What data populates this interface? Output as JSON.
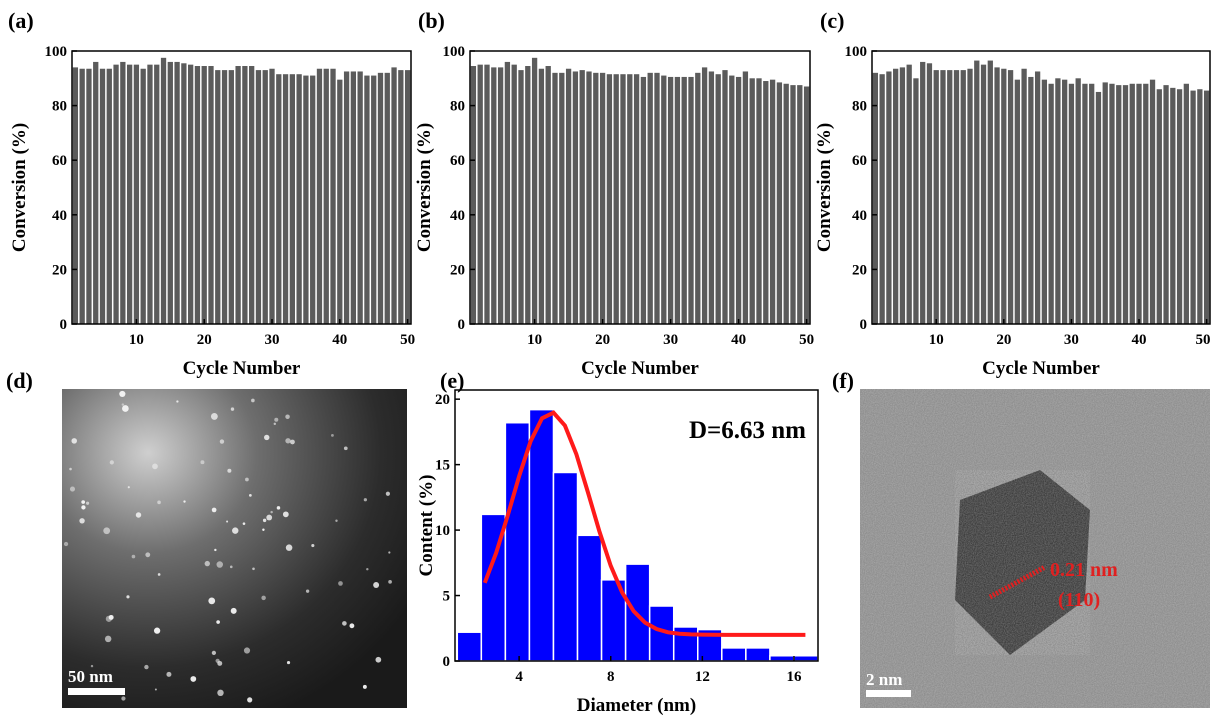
{
  "chart_data": [
    {
      "type": "bar",
      "panel_label": "(a)",
      "xlabel": "Cycle Number",
      "ylabel": "Conversion (%)",
      "color": "#5b5b5b",
      "x": [
        1,
        2,
        3,
        4,
        5,
        6,
        7,
        8,
        9,
        10,
        11,
        12,
        13,
        14,
        15,
        16,
        17,
        18,
        19,
        20,
        21,
        22,
        23,
        24,
        25,
        26,
        27,
        28,
        29,
        30,
        31,
        32,
        33,
        34,
        35,
        36,
        37,
        38,
        39,
        40,
        41,
        42,
        43,
        44,
        45,
        46,
        47,
        48,
        49,
        50
      ],
      "values": [
        94,
        93.5,
        93.5,
        96,
        93.5,
        93.5,
        95,
        96,
        95,
        95,
        93.5,
        95,
        95,
        97.5,
        96,
        96,
        95.5,
        95,
        94.5,
        94.5,
        94.5,
        93,
        93,
        93,
        94.5,
        94.5,
        94.5,
        93,
        93,
        93.5,
        91.5,
        91.5,
        91.5,
        91.5,
        91,
        91,
        93.5,
        93.5,
        93.5,
        89.5,
        92.5,
        92.5,
        92.5,
        91,
        91,
        92,
        92,
        94,
        93,
        93
      ],
      "xlim": [
        0.5,
        50.5
      ],
      "xticks": [
        10,
        20,
        30,
        40,
        50
      ],
      "ylim": [
        0,
        100
      ],
      "yticks": [
        0,
        20,
        40,
        60,
        80,
        100
      ]
    },
    {
      "type": "bar",
      "panel_label": "(b)",
      "xlabel": "Cycle Number",
      "ylabel": "Conversion (%)",
      "color": "#5b5b5b",
      "x": [
        1,
        2,
        3,
        4,
        5,
        6,
        7,
        8,
        9,
        10,
        11,
        12,
        13,
        14,
        15,
        16,
        17,
        18,
        19,
        20,
        21,
        22,
        23,
        24,
        25,
        26,
        27,
        28,
        29,
        30,
        31,
        32,
        33,
        34,
        35,
        36,
        37,
        38,
        39,
        40,
        41,
        42,
        43,
        44,
        45,
        46,
        47,
        48,
        49,
        50
      ],
      "values": [
        94.5,
        95,
        95,
        94,
        94,
        96,
        95,
        93,
        94.5,
        97.5,
        93.5,
        94.5,
        92,
        92,
        93.5,
        92.5,
        93,
        92.5,
        92,
        92,
        91.5,
        91.5,
        91.5,
        91.5,
        91.5,
        90.5,
        92,
        92,
        91,
        90.5,
        90.5,
        90.5,
        90.5,
        92,
        94,
        92.5,
        91.5,
        93,
        91,
        90.5,
        92.5,
        90,
        90,
        89,
        89.5,
        88.5,
        88,
        87.5,
        87.5,
        87
      ],
      "xlim": [
        0.5,
        50.5
      ],
      "xticks": [
        10,
        20,
        30,
        40,
        50
      ],
      "ylim": [
        0,
        100
      ],
      "yticks": [
        0,
        20,
        40,
        60,
        80,
        100
      ]
    },
    {
      "type": "bar",
      "panel_label": "(c)",
      "xlabel": "Cycle Number",
      "ylabel": "Conversion (%)",
      "color": "#5b5b5b",
      "x": [
        1,
        2,
        3,
        4,
        5,
        6,
        7,
        8,
        9,
        10,
        11,
        12,
        13,
        14,
        15,
        16,
        17,
        18,
        19,
        20,
        21,
        22,
        23,
        24,
        25,
        26,
        27,
        28,
        29,
        30,
        31,
        32,
        33,
        34,
        35,
        36,
        37,
        38,
        39,
        40,
        41,
        42,
        43,
        44,
        45,
        46,
        47,
        48,
        49,
        50
      ],
      "values": [
        92,
        91.5,
        92.5,
        93.5,
        94,
        95,
        90,
        96,
        95.5,
        93,
        93,
        93,
        93,
        93,
        93.5,
        96.5,
        95,
        96.5,
        94,
        93.5,
        93,
        89.5,
        93.5,
        90.5,
        92.5,
        89.5,
        88,
        90,
        89.5,
        88,
        90,
        88,
        88,
        85,
        88.5,
        88,
        87.5,
        87.5,
        88,
        88,
        88,
        89.5,
        86,
        87.5,
        86.5,
        86,
        88,
        85.5,
        86,
        85.5
      ],
      "xlim": [
        0.5,
        50.5
      ],
      "xticks": [
        10,
        20,
        30,
        40,
        50
      ],
      "ylim": [
        0,
        100
      ],
      "yticks": [
        0,
        20,
        40,
        60,
        80,
        100
      ]
    },
    {
      "type": "histogram",
      "panel_label": "(e)",
      "xlabel": "Diameter (nm)",
      "ylabel": "Content (%)",
      "annotation": "D=6.63 nm",
      "color": "#0000ff",
      "bins": [
        1.3,
        2.35,
        3.4,
        4.45,
        5.5,
        6.55,
        7.6,
        8.65,
        9.7,
        10.75,
        11.8,
        12.85,
        13.9,
        14.95,
        16,
        17.05
      ],
      "values": [
        2.2,
        11.2,
        18.2,
        19.2,
        14.4,
        9.6,
        6.2,
        7.4,
        4.2,
        2.6,
        2.4,
        1.0,
        1.0,
        0.4,
        0.4
      ],
      "fit": {
        "color": "#ff1a1a",
        "x": [
          2.5,
          3,
          3.5,
          4,
          4.5,
          5,
          5.5,
          6,
          6.5,
          7,
          7.5,
          8,
          8.5,
          9,
          9.5,
          10,
          10.5,
          11,
          11.5,
          12,
          13,
          14,
          15,
          16.5
        ],
        "values": [
          5.97,
          8.27,
          11.1,
          14.11,
          16.78,
          18.54,
          18.97,
          17.98,
          15.79,
          12.91,
          9.93,
          7.27,
          5.23,
          3.81,
          2.93,
          2.44,
          2.19,
          2.08,
          2.03,
          2.01,
          2,
          2,
          2,
          2
        ]
      },
      "xlim": [
        1.2,
        17.05
      ],
      "xticks": [
        4,
        8,
        12,
        16
      ],
      "ylim": [
        0,
        20.7
      ],
      "yticks": [
        0,
        5,
        10,
        15,
        20
      ]
    }
  ],
  "images": [
    {
      "panel_label": "(d)",
      "scale_bar": "50 nm"
    },
    {
      "panel_label": "(f)",
      "scale_bar": "2 nm",
      "annotations": [
        "0.21 nm",
        "(110)"
      ]
    }
  ]
}
